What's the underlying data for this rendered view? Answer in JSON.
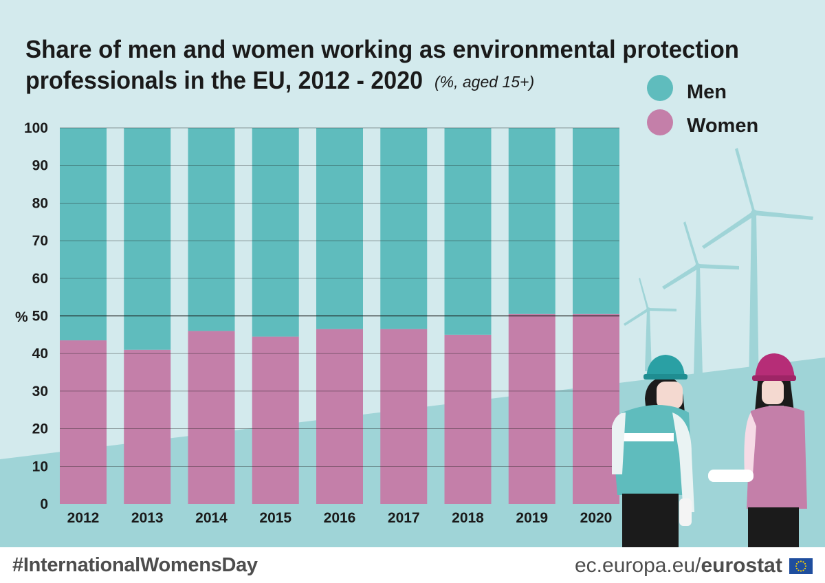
{
  "title_line1": "Share of men and women working as environmental protection",
  "title_line2": "professionals in the EU, 2012 - 2020",
  "subtitle": "(%, aged 15+)",
  "y_unit": "%",
  "hashtag": "#InternationalWomensDay",
  "source_prefix": "ec.europa.eu/",
  "source_brand": "eurostat",
  "colors": {
    "men": "#5fbcbd",
    "women": "#c47fa9",
    "background": "#d3eaed",
    "hill": "#9fd4d7"
  },
  "chart_data": {
    "type": "bar",
    "stacked": true,
    "categories": [
      "2012",
      "2013",
      "2014",
      "2015",
      "2016",
      "2017",
      "2018",
      "2019",
      "2020"
    ],
    "series": [
      {
        "name": "Women",
        "values": [
          43.5,
          41.0,
          46.0,
          44.5,
          46.5,
          46.5,
          45.0,
          50.5,
          50.5
        ]
      },
      {
        "name": "Men",
        "values": [
          56.5,
          59.0,
          54.0,
          55.5,
          53.5,
          53.5,
          55.0,
          49.5,
          49.5
        ]
      }
    ],
    "ylim": [
      0,
      100
    ],
    "yticks": [
      "0",
      "10",
      "20",
      "30",
      "40",
      "50",
      "60",
      "70",
      "80",
      "90",
      "100"
    ],
    "grid": true,
    "legend": {
      "position": "top-right",
      "entries": [
        "Men",
        "Women"
      ]
    }
  }
}
